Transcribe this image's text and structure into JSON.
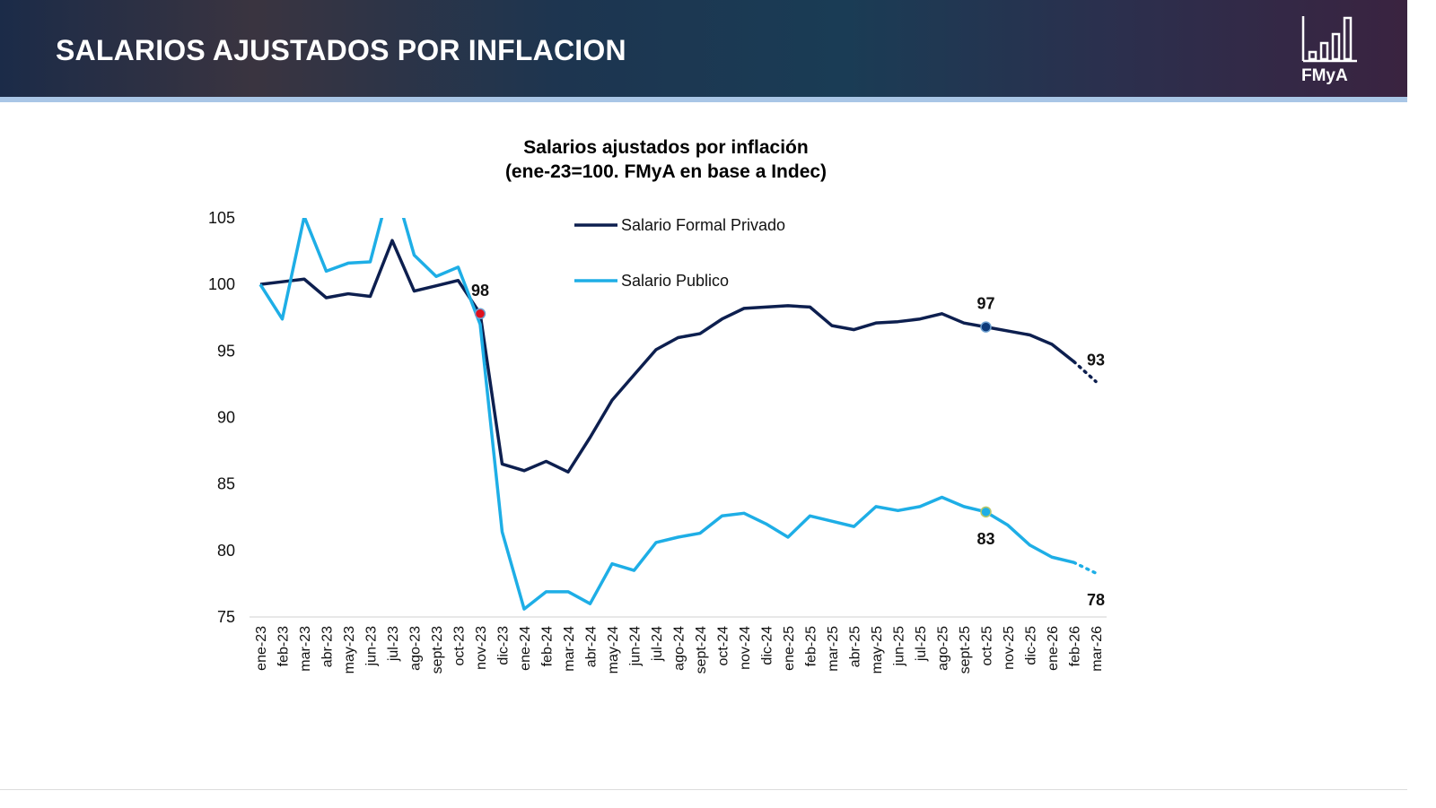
{
  "header": {
    "title": "SALARIOS AJUSTADOS POR INFLACION",
    "logo_text": "FMyA"
  },
  "chart_data": {
    "type": "line",
    "title": "Salarios ajustados por inflación",
    "subtitle": "(ene-23=100. FMyA en base a Indec)",
    "ylim": [
      75,
      105
    ],
    "yticks": [
      105,
      100,
      95,
      90,
      85,
      80,
      75
    ],
    "grid": false,
    "legend_placement": "top-center",
    "categories": [
      "ene-23",
      "feb-23",
      "mar-23",
      "abr-23",
      "may-23",
      "jun-23",
      "jul-23",
      "ago-23",
      "sept-23",
      "oct-23",
      "nov-23",
      "dic-23",
      "ene-24",
      "feb-24",
      "mar-24",
      "abr-24",
      "may-24",
      "jun-24",
      "jul-24",
      "ago-24",
      "sept-24",
      "oct-24",
      "nov-24",
      "dic-24",
      "ene-25",
      "feb-25",
      "mar-25",
      "abr-25",
      "may-25",
      "jun-25",
      "jul-25",
      "ago-25",
      "sept-25",
      "oct-25",
      "nov-25",
      "dic-25",
      "ene-26",
      "feb-26",
      "mar-26"
    ],
    "series": [
      {
        "name": "Salario Formal Privado",
        "color": "#0d1f4f",
        "dotted_last_segment": true,
        "values": [
          100,
          100.2,
          100.4,
          99.0,
          99.3,
          99.1,
          103.3,
          99.5,
          99.9,
          100.3,
          97.8,
          86.5,
          86.0,
          86.7,
          85.9,
          88.5,
          91.3,
          93.2,
          95.1,
          96.0,
          96.3,
          97.4,
          98.2,
          98.3,
          98.4,
          98.3,
          96.9,
          96.6,
          97.1,
          97.2,
          97.4,
          97.8,
          97.1,
          96.8,
          96.5,
          96.2,
          95.5,
          94.2,
          92.7
        ]
      },
      {
        "name": "Salario Publico",
        "color": "#1eaee6",
        "dotted_last_segment": true,
        "values": [
          100,
          97.4,
          105.1,
          101.0,
          101.6,
          101.7,
          108,
          102.2,
          100.6,
          101.3,
          97.0,
          81.4,
          75.6,
          76.9,
          76.9,
          76.0,
          79.0,
          78.5,
          80.6,
          81.0,
          81.3,
          82.6,
          82.8,
          82.0,
          81.0,
          82.6,
          82.2,
          81.8,
          83.3,
          83.0,
          83.3,
          84.0,
          83.3,
          82.9,
          81.9,
          80.4,
          79.5,
          79.1,
          78.3
        ]
      }
    ],
    "annotations": [
      {
        "text": "98",
        "series": 0,
        "category": "nov-23",
        "marker_color": "#e0101e"
      },
      {
        "text": "97",
        "series": 0,
        "category": "oct-25",
        "marker_color": "#0d3a7a"
      },
      {
        "text": "93",
        "series": 0,
        "category": "mar-26"
      },
      {
        "text": "83",
        "series": 1,
        "category": "oct-25",
        "marker_color": "#1eaee6"
      },
      {
        "text": "78",
        "series": 1,
        "category": "mar-26"
      }
    ]
  }
}
